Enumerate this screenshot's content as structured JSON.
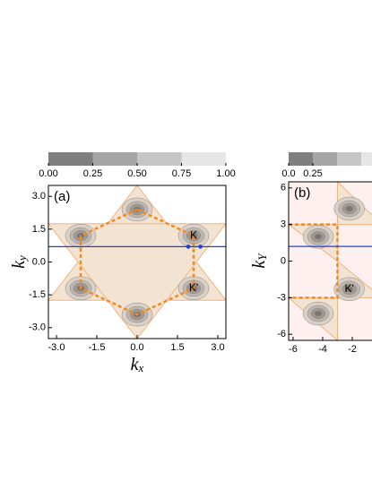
{
  "chart_data": [
    {
      "type": "contour",
      "panel_label": "(a)",
      "x_label": {
        "text": "k",
        "sub": "x"
      },
      "y_label": {
        "text": "k",
        "sub": "y"
      },
      "xlim": [
        -3.3,
        3.3
      ],
      "ylim": [
        -3.5,
        3.5
      ],
      "xticks": [
        {
          "value": -3,
          "label": "-3.0"
        },
        {
          "value": -1.5,
          "label": "-1.5"
        },
        {
          "value": 0,
          "label": "0.0"
        },
        {
          "value": 1.5,
          "label": "1.5"
        },
        {
          "value": 3,
          "label": "3.0"
        }
      ],
      "yticks": [
        {
          "value": -3,
          "label": "-3.0"
        },
        {
          "value": -1.5,
          "label": "-1.5"
        },
        {
          "value": 0,
          "label": "0.0"
        },
        {
          "value": 1.5,
          "label": "1.5"
        },
        {
          "value": 3,
          "label": "3.0"
        }
      ],
      "colorbar": {
        "lim": [
          0,
          1
        ],
        "ticks": [
          {
            "value": 0,
            "label": "0.00"
          },
          {
            "value": 0.25,
            "label": "0.25"
          },
          {
            "value": 0.5,
            "label": "0.50"
          },
          {
            "value": 0.75,
            "label": "0.75"
          },
          {
            "value": 1,
            "label": "1.00"
          }
        ],
        "colors": [
          "#7f7f7f",
          "#a5a5a5",
          "#c6c6c6",
          "#e6e6e6"
        ]
      },
      "background": "#ffffff",
      "triangles": [
        {
          "x": [
            0,
            3.3,
            -3.3
          ],
          "y": [
            3.5,
            -1.75,
            -1.75
          ]
        },
        {
          "x": [
            0,
            3.3,
            -3.3
          ],
          "y": [
            -3.5,
            1.75,
            1.75
          ]
        }
      ],
      "valleys": {
        "x": [
          0,
          2.1,
          2.1,
          0,
          -2.1,
          -2.1
        ],
        "y": [
          2.4,
          1.2,
          -1.2,
          -2.4,
          -1.2,
          1.2
        ]
      },
      "path": {
        "x": [
          0,
          2.1,
          2.1,
          0,
          -2.1,
          -2.1,
          0
        ],
        "y": [
          2.4,
          1.2,
          -1.2,
          -2.4,
          -1.2,
          1.2,
          2.4
        ]
      },
      "cut_line": 0.7,
      "cut_points": {
        "x": [
          1.9,
          2.35
        ],
        "y": [
          0.7,
          0.7
        ]
      },
      "annotations": [
        {
          "text": "K",
          "x": 2.1,
          "y": 1.2
        },
        {
          "text": "K'",
          "x": 2.1,
          "y": -1.2
        }
      ]
    },
    {
      "type": "contour",
      "panel_label": "(b)",
      "y_label": {
        "text": "k",
        "sub": "Y"
      },
      "xlim": [
        -6.3,
        6.3
      ],
      "ylim": [
        -6.5,
        6.5
      ],
      "xticks": [
        -6,
        -4,
        -2
      ],
      "yticks": [
        -6,
        -3,
        0,
        3,
        6
      ],
      "colorbar": {
        "lim": [
          0,
          1
        ],
        "ticks": [
          {
            "value": 0,
            "label": "0.0"
          },
          {
            "value": 0.25,
            "label": "0.25"
          }
        ],
        "colors": [
          "#7f7f7f",
          "#a5a5a5",
          "#c6c6c6",
          "#e6e6e6"
        ]
      },
      "background": "#fdf0ee",
      "triangles": [
        {
          "x": [
            -6.3,
            -3,
            -3
          ],
          "y": [
            3,
            3,
            0
          ]
        },
        {
          "x": [
            -3,
            -3,
            0
          ],
          "y": [
            6.5,
            3,
            3
          ]
        },
        {
          "x": [
            -3,
            -3,
            0
          ],
          "y": [
            0,
            -3,
            -3
          ]
        },
        {
          "x": [
            -6.3,
            -3,
            -3
          ],
          "y": [
            -3,
            -3,
            -6.5
          ]
        }
      ],
      "valleys": {
        "x": [
          -4.3,
          -2.2,
          -2.2,
          -4.3
        ],
        "y": [
          2,
          4.3,
          -2.3,
          -4.3
        ]
      },
      "path": {
        "x": [
          -6.3,
          -3,
          -3,
          -6.3
        ],
        "y": [
          3,
          3,
          -3,
          -3
        ]
      },
      "cut_line": 1.2,
      "annotations": [
        {
          "text": "K'",
          "x": -2.2,
          "y": -2.3
        }
      ]
    }
  ]
}
